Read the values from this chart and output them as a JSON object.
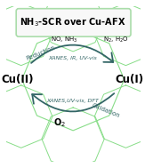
{
  "title": "NH$_3$-SCR over Cu-AFX",
  "bg_color": "#ffffff",
  "box_edge_color": "#aaddaa",
  "green_line_color": "#88dd88",
  "arrow_color": "#336666",
  "cu2_label": "Cu(II)",
  "cu1_label": "Cu(I)",
  "reduction_label": "Reduction",
  "oxidation_label": "Oxidation",
  "top_technique": "XANES, IR, UV-vis",
  "bottom_technique": "XANES,UV-vis, DFT",
  "reactants": "NO, NH$_3$",
  "products": "N$_2$, H$_2$O",
  "oxidant": "O$_2$",
  "title_fontsize": 7.0,
  "label_fontsize": 8.5,
  "small_fontsize": 5.0,
  "technique_fontsize": 4.5
}
